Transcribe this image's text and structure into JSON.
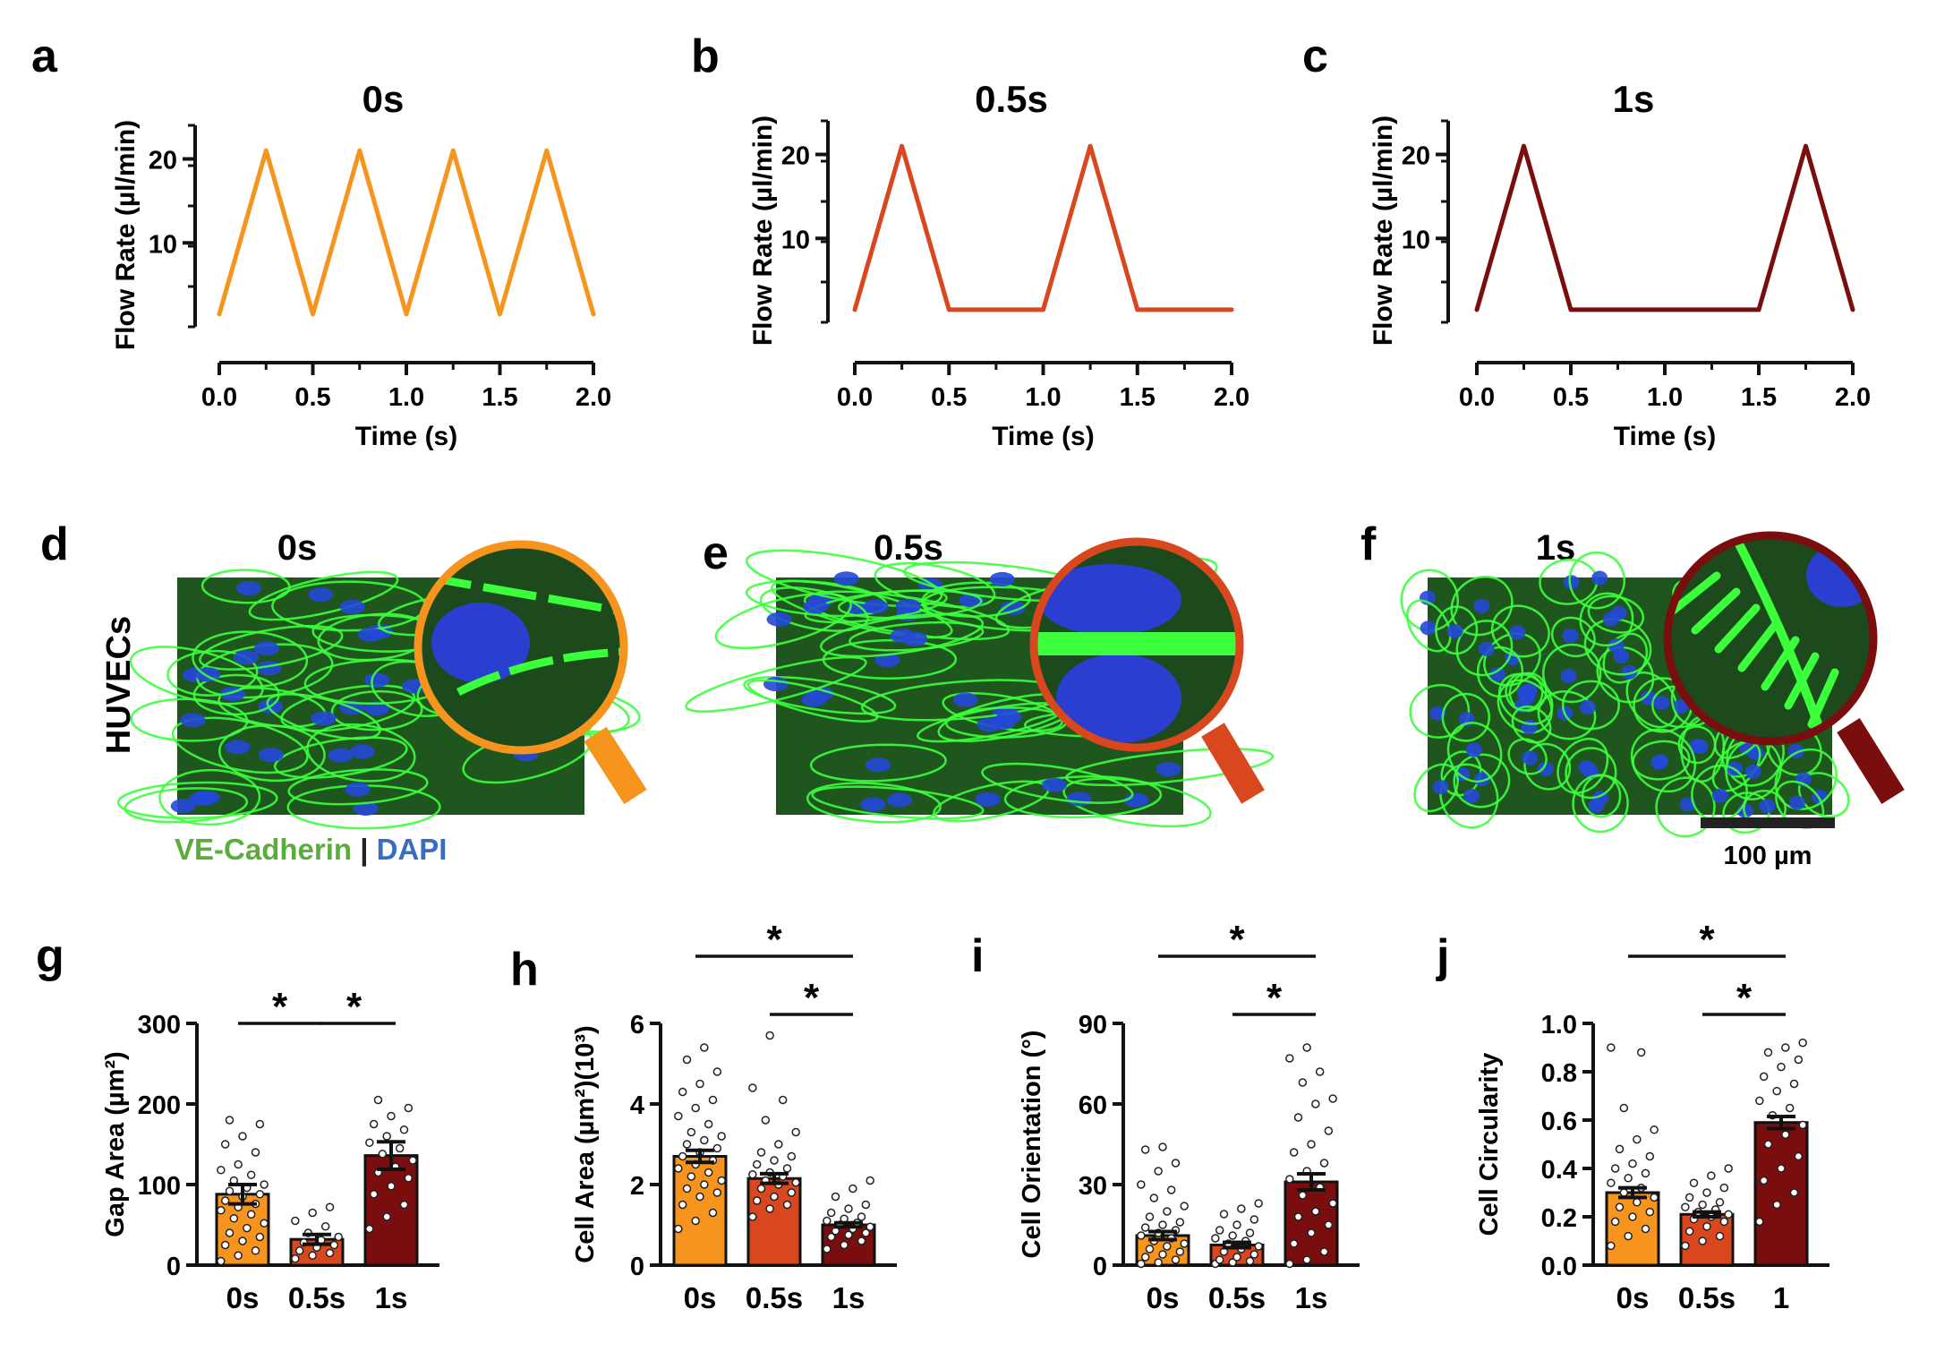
{
  "colors": {
    "c0": "#F7941D",
    "c05": "#D9471E",
    "c1": "#7A0E0E",
    "ve": "#5AAD3A",
    "dapi": "#3A6CC2"
  },
  "panel_letters": [
    "a",
    "b",
    "c",
    "d",
    "e",
    "f",
    "g",
    "h",
    "i",
    "j"
  ],
  "chart_data": [
    {
      "id": "a",
      "type": "line",
      "title": "0s",
      "xlabel": "Time (s)",
      "ylabel": "Flow Rate (µl/min)",
      "xlim": [
        0,
        2
      ],
      "ylim": [
        0,
        24
      ],
      "xticks": [
        "0.0",
        "0.5",
        "1.0",
        "1.5",
        "2.0"
      ],
      "yticks": [
        "10",
        "20"
      ],
      "color": "#F7941D",
      "x": [
        0,
        0.25,
        0.5,
        0.75,
        1.0,
        1.25,
        1.5,
        1.75,
        2.0
      ],
      "y": [
        1.5,
        21,
        1.5,
        21,
        1.5,
        21,
        1.5,
        21,
        1.5
      ]
    },
    {
      "id": "b",
      "type": "line",
      "title": "0.5s",
      "xlabel": "Time (s)",
      "ylabel": "Flow Rate (µl/min)",
      "xlim": [
        0,
        2
      ],
      "ylim": [
        0,
        24
      ],
      "xticks": [
        "0.0",
        "0.5",
        "1.0",
        "1.5",
        "2.0"
      ],
      "yticks": [
        "10",
        "20"
      ],
      "color": "#D9471E",
      "x": [
        0,
        0.25,
        0.5,
        1.0,
        1.25,
        1.5,
        2.0
      ],
      "y": [
        1.5,
        21,
        1.5,
        1.5,
        21,
        1.5,
        1.5
      ]
    },
    {
      "id": "c",
      "type": "line",
      "title": "1s",
      "xlabel": "Time (s)",
      "ylabel": "Flow Rate (µl/min)",
      "xlim": [
        0,
        2
      ],
      "ylim": [
        0,
        24
      ],
      "xticks": [
        "0.0",
        "0.5",
        "1.0",
        "1.5",
        "2.0"
      ],
      "yticks": [
        "10",
        "20"
      ],
      "color": "#7A0E0E",
      "x": [
        0,
        0.25,
        0.5,
        1.5,
        1.75,
        2.0
      ],
      "y": [
        1.5,
        21,
        1.5,
        1.5,
        21,
        1.5
      ]
    },
    {
      "id": "g",
      "type": "bar",
      "ylabel": "Gap Area (µm²)",
      "categories": [
        "0s",
        "0.5s",
        "1s"
      ],
      "values": [
        88,
        32,
        136
      ],
      "errors": [
        12,
        6,
        17
      ],
      "ylim": [
        0,
        300
      ],
      "yticks": [
        "0",
        "100",
        "200",
        "300"
      ],
      "points": [
        [
          5,
          12,
          18,
          25,
          30,
          35,
          40,
          46,
          52,
          58,
          63,
          68,
          72,
          76,
          80,
          85,
          88,
          92,
          96,
          100,
          105,
          112,
          118,
          125,
          140,
          150,
          160,
          175,
          180
        ],
        [
          8,
          12,
          15,
          18,
          22,
          25,
          28,
          31,
          35,
          40,
          48,
          55,
          65,
          72
        ],
        [
          45,
          60,
          75,
          88,
          98,
          108,
          115,
          122,
          130,
          138,
          145,
          152,
          160,
          168,
          175,
          185,
          195,
          205
        ]
      ],
      "significance": [
        {
          "from": 0,
          "to": 1,
          "label": "*"
        },
        {
          "from": 1,
          "to": 2,
          "label": "*"
        }
      ]
    },
    {
      "id": "h",
      "type": "bar",
      "ylabel": "Cell Area (µm²)(10³)",
      "categories": [
        "0s",
        "0.5s",
        "1s"
      ],
      "values": [
        2.7,
        2.15,
        1.0
      ],
      "errors": [
        0.15,
        0.12,
        0.05
      ],
      "ylim": [
        0,
        6
      ],
      "yticks": [
        "0",
        "2",
        "4",
        "6"
      ],
      "points": [
        [
          0.9,
          1.1,
          1.3,
          1.5,
          1.7,
          1.8,
          1.9,
          2.0,
          2.1,
          2.2,
          2.3,
          2.4,
          2.5,
          2.6,
          2.7,
          2.8,
          2.9,
          3.0,
          3.1,
          3.2,
          3.3,
          3.5,
          3.7,
          3.9,
          4.1,
          4.3,
          4.5,
          4.8,
          5.1,
          5.4
        ],
        [
          1.2,
          1.4,
          1.5,
          1.6,
          1.7,
          1.8,
          1.9,
          2.0,
          2.05,
          2.1,
          2.2,
          2.25,
          2.3,
          2.4,
          2.5,
          2.6,
          2.7,
          2.8,
          3.0,
          3.3,
          3.6,
          4.1,
          4.4,
          5.7
        ],
        [
          0.4,
          0.5,
          0.6,
          0.7,
          0.75,
          0.8,
          0.85,
          0.9,
          0.95,
          1.0,
          1.05,
          1.1,
          1.15,
          1.2,
          1.3,
          1.4,
          1.5,
          1.7,
          1.9,
          2.1
        ]
      ],
      "significance": [
        {
          "from": 0,
          "to": 2,
          "label": "*"
        },
        {
          "from": 1,
          "to": 2,
          "label": "*"
        }
      ]
    },
    {
      "id": "i",
      "type": "bar",
      "ylabel": "Cell Orientation (°)",
      "categories": [
        "0s",
        "0.5s",
        "1s"
      ],
      "values": [
        11,
        7.5,
        31
      ],
      "errors": [
        1.5,
        1,
        3
      ],
      "ylim": [
        0,
        90
      ],
      "yticks": [
        "0",
        "30",
        "60",
        "90"
      ],
      "points": [
        [
          0.5,
          1,
          2,
          3,
          4,
          5,
          6,
          7,
          8,
          9,
          10,
          11,
          12,
          13,
          14,
          15,
          16,
          18,
          20,
          22,
          25,
          28,
          30,
          35,
          38,
          43,
          44
        ],
        [
          0.5,
          1,
          1.5,
          2,
          3,
          4,
          5,
          6,
          7,
          8,
          9,
          10,
          11,
          12,
          13,
          15,
          17,
          19,
          21,
          23
        ],
        [
          0.5,
          2,
          5,
          8,
          12,
          15,
          18,
          20,
          23,
          26,
          29,
          32,
          35,
          38,
          42,
          45,
          50,
          55,
          60,
          62,
          68,
          72,
          77,
          81
        ]
      ],
      "significance": [
        {
          "from": 0,
          "to": 2,
          "label": "*"
        },
        {
          "from": 1,
          "to": 2,
          "label": "*"
        }
      ]
    },
    {
      "id": "j",
      "type": "bar",
      "ylabel": "Cell Circularity",
      "categories": [
        "0s",
        "0.5s",
        "1"
      ],
      "values": [
        0.3,
        0.21,
        0.59
      ],
      "errors": [
        0.02,
        0.01,
        0.025
      ],
      "ylim": [
        0,
        1.0
      ],
      "yticks": [
        "0.0",
        "0.2",
        "0.4",
        "0.6",
        "0.8",
        "1.0"
      ],
      "points": [
        [
          0.08,
          0.12,
          0.15,
          0.18,
          0.2,
          0.22,
          0.24,
          0.26,
          0.28,
          0.3,
          0.32,
          0.34,
          0.36,
          0.38,
          0.4,
          0.42,
          0.45,
          0.48,
          0.52,
          0.56,
          0.65,
          0.88,
          0.9
        ],
        [
          0.08,
          0.1,
          0.12,
          0.14,
          0.16,
          0.18,
          0.19,
          0.2,
          0.21,
          0.22,
          0.23,
          0.24,
          0.25,
          0.26,
          0.28,
          0.3,
          0.32,
          0.34,
          0.37,
          0.4
        ],
        [
          0.18,
          0.25,
          0.3,
          0.35,
          0.4,
          0.45,
          0.5,
          0.54,
          0.58,
          0.62,
          0.65,
          0.68,
          0.72,
          0.75,
          0.78,
          0.82,
          0.85,
          0.88,
          0.9,
          0.92
        ]
      ],
      "significance": [
        {
          "from": 0,
          "to": 2,
          "label": "*"
        },
        {
          "from": 1,
          "to": 2,
          "label": "*"
        }
      ]
    }
  ],
  "micrographs": [
    {
      "id": "d",
      "title": "0s"
    },
    {
      "id": "e",
      "title": "0.5s"
    },
    {
      "id": "f",
      "title": "1s"
    }
  ],
  "row_label": "HUVECs",
  "stain_ve": "VE-Cadherin",
  "stain_sep": " | ",
  "stain_dapi": "DAPI",
  "scale_bar": "100 µm"
}
